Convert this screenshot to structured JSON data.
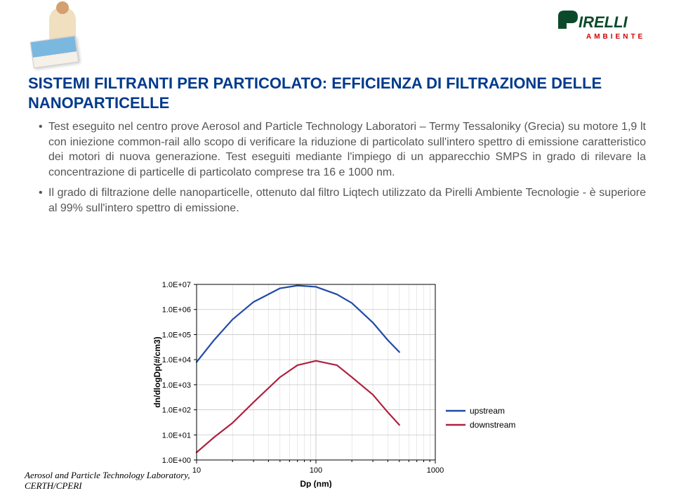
{
  "brand": {
    "name": "IRELLI",
    "name_color": "#0a4a2a",
    "prefix_shape_color": "#0a4a2a",
    "sub": "AMBIENTE",
    "sub_color": "#d00000"
  },
  "title": {
    "text": "SISTEMI FILTRANTI PER PARTICOLATO: EFFICIENZA DI FILTRAZIONE DELLE NANOPARTICELLE",
    "color": "#003a8c"
  },
  "bullets": [
    "Test eseguito nel centro prove Aerosol and Particle Technology Laboratori – Termy Tessaloniky (Grecia) su motore 1,9 lt con iniezione common-rail allo scopo di verificare la riduzione di particolato sull'intero spettro di emissione caratteristico dei motori di nuova generazione. Test eseguiti mediante l'impiego di un apparecchio SMPS in grado di rilevare la concentrazione di particelle di particolato comprese tra 16 e 1000 nm.",
    "Il grado di filtrazione delle nanoparticelle, ottenuto dal filtro Liqtech utilizzato da Pirelli Ambiente Tecnologie -  è superiore al 99% sull'intero spettro di emissione."
  ],
  "citation": {
    "line1": "Aerosol and Particle Technology Laboratory,",
    "line2": "CERTH/CPERI"
  },
  "chart": {
    "type": "line-log-log",
    "xlabel": "Dp (nm)",
    "ylabel": "dn/dlogDp(#/cm3)",
    "label_fontsize": 12,
    "tick_fontsize": 11,
    "background_color": "#ffffff",
    "grid_color": "#c8c8c8",
    "axis_color": "#000000",
    "x_ticks": [
      10,
      100,
      1000
    ],
    "y_ticks_exp": [
      0,
      1,
      2,
      3,
      4,
      5,
      6,
      7
    ],
    "y_tick_labels": [
      "1.0E+00",
      "1.0E+01",
      "1.0E+02",
      "1.0E+03",
      "1.0E+04",
      "1.0E+05",
      "1.0E+06",
      "1.0E+07"
    ],
    "legend": {
      "position": "right",
      "items": [
        {
          "label": "upstream",
          "color": "#1f4aa6"
        },
        {
          "label": "downstream",
          "color": "#b02040"
        }
      ]
    },
    "series": {
      "upstream": {
        "color": "#1f4aa6",
        "line_width": 2.2,
        "points": [
          [
            10,
            8000.0
          ],
          [
            14,
            60000.0
          ],
          [
            20,
            400000.0
          ],
          [
            30,
            2000000.0
          ],
          [
            50,
            7000000.0
          ],
          [
            70,
            9000000.0
          ],
          [
            100,
            8000000.0
          ],
          [
            150,
            4000000.0
          ],
          [
            200,
            1800000.0
          ],
          [
            300,
            300000.0
          ],
          [
            400,
            60000.0
          ],
          [
            500,
            20000.0
          ]
        ]
      },
      "downstream": {
        "color": "#b02040",
        "line_width": 2.2,
        "points": [
          [
            10,
            2.0
          ],
          [
            14,
            8.0
          ],
          [
            20,
            30.0
          ],
          [
            30,
            200.0
          ],
          [
            50,
            2000.0
          ],
          [
            70,
            6000.0
          ],
          [
            100,
            9000.0
          ],
          [
            150,
            6000.0
          ],
          [
            200,
            2000.0
          ],
          [
            300,
            400.0
          ],
          [
            400,
            80.0
          ],
          [
            500,
            25.0
          ]
        ]
      }
    }
  }
}
